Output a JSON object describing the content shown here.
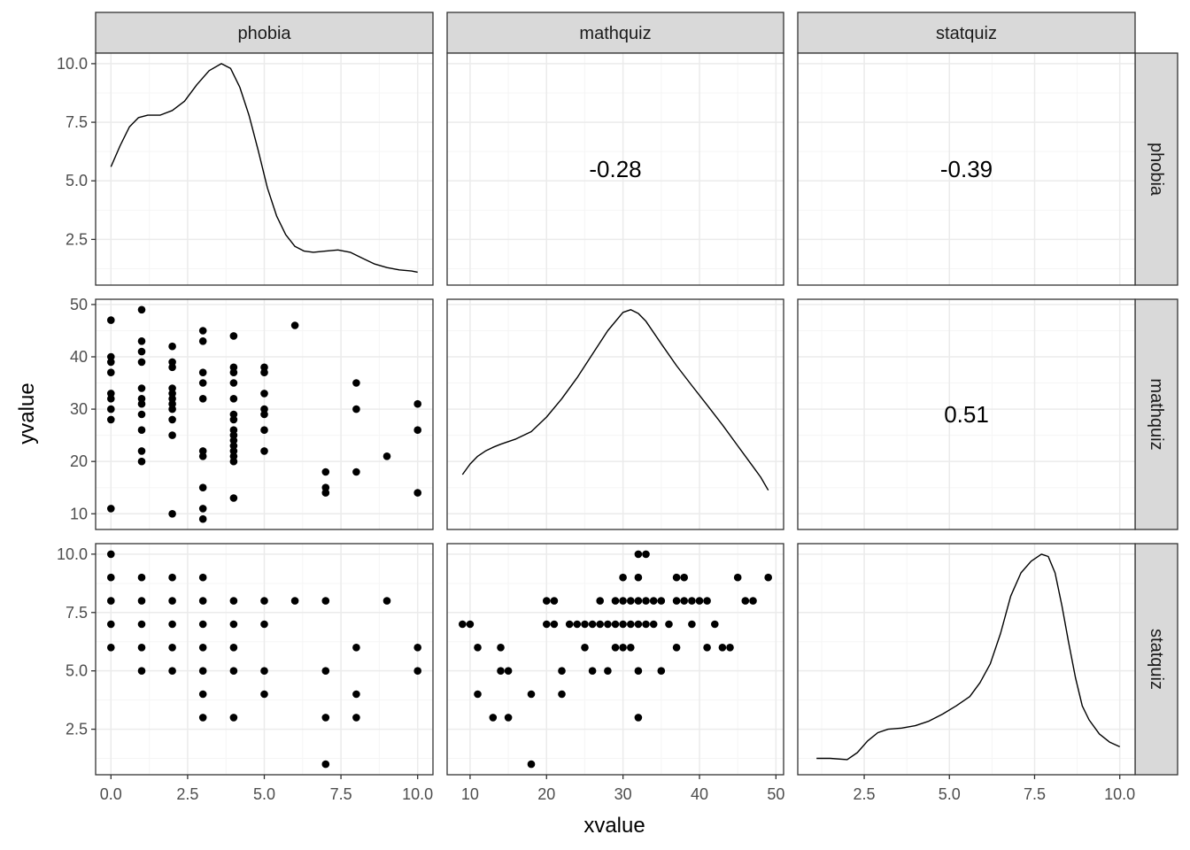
{
  "chart_data": {
    "type": "scatter",
    "kind": "pairs-matrix",
    "variables": [
      "phobia",
      "mathquiz",
      "statquiz"
    ],
    "xlabel": "xvalue",
    "ylabel": "yvalue",
    "grid": true,
    "colors": {
      "point": "#000000",
      "line": "#000000",
      "strip_fill": "#d9d9d9",
      "panel_border": "#333333",
      "grid_major": "#ebebeb",
      "grid_minor": "#f5f5f5",
      "tick_text": "#4d4d4d"
    },
    "columns": [
      {
        "name": "phobia",
        "xlim": [
          -0.5,
          10.5
        ],
        "ticks": [
          0,
          2.5,
          5,
          7.5,
          10
        ],
        "tick_labels": [
          "0.0",
          "2.5",
          "5.0",
          "7.5",
          "10.0"
        ]
      },
      {
        "name": "mathquiz",
        "xlim": [
          7,
          51
        ],
        "ticks": [
          10,
          20,
          30,
          40,
          50
        ],
        "tick_labels": [
          "10",
          "20",
          "30",
          "40",
          "50"
        ]
      },
      {
        "name": "statquiz",
        "xlim": [
          0.55,
          10.45
        ],
        "ticks": [
          2.5,
          5,
          7.5,
          10
        ],
        "tick_labels": [
          "2.5",
          "5.0",
          "7.5",
          "10.0"
        ]
      }
    ],
    "rows": [
      {
        "name": "phobia",
        "ylim": [
          0.55,
          10.45
        ],
        "ticks": [
          2.5,
          5,
          7.5,
          10
        ],
        "tick_labels": [
          "2.5",
          "5.0",
          "7.5",
          "10.0"
        ]
      },
      {
        "name": "mathquiz",
        "ylim": [
          7,
          51
        ],
        "ticks": [
          10,
          20,
          30,
          40,
          50
        ],
        "tick_labels": [
          "10",
          "20",
          "30",
          "40",
          "50"
        ]
      },
      {
        "name": "statquiz",
        "ylim": [
          0.55,
          10.45
        ],
        "ticks": [
          2.5,
          5,
          7.5,
          10
        ],
        "tick_labels": [
          "2.5",
          "5.0",
          "7.5",
          "10.0"
        ]
      }
    ],
    "correlations": [
      {
        "row": 0,
        "col": 1,
        "label": "-0.28",
        "value": -0.28
      },
      {
        "row": 0,
        "col": 2,
        "label": "-0.39",
        "value": -0.39
      },
      {
        "row": 1,
        "col": 2,
        "label": "0.51",
        "value": 0.51
      }
    ],
    "densities": [
      {
        "row": 0,
        "col": 0,
        "points": [
          [
            0,
            5.6
          ],
          [
            0.3,
            6.5
          ],
          [
            0.6,
            7.3
          ],
          [
            0.9,
            7.7
          ],
          [
            1.2,
            7.8
          ],
          [
            1.6,
            7.8
          ],
          [
            2.0,
            8.0
          ],
          [
            2.4,
            8.4
          ],
          [
            2.8,
            9.1
          ],
          [
            3.2,
            9.7
          ],
          [
            3.6,
            10.0
          ],
          [
            3.9,
            9.8
          ],
          [
            4.2,
            9.0
          ],
          [
            4.5,
            7.8
          ],
          [
            4.8,
            6.3
          ],
          [
            5.1,
            4.7
          ],
          [
            5.4,
            3.5
          ],
          [
            5.7,
            2.7
          ],
          [
            6.0,
            2.2
          ],
          [
            6.3,
            2.0
          ],
          [
            6.6,
            1.95
          ],
          [
            7.0,
            2.0
          ],
          [
            7.4,
            2.05
          ],
          [
            7.8,
            1.95
          ],
          [
            8.2,
            1.7
          ],
          [
            8.6,
            1.45
          ],
          [
            9.0,
            1.3
          ],
          [
            9.4,
            1.2
          ],
          [
            9.8,
            1.15
          ],
          [
            10,
            1.1
          ]
        ]
      },
      {
        "row": 1,
        "col": 1,
        "points": [
          [
            9,
            17.5
          ],
          [
            10,
            19.5
          ],
          [
            11,
            21
          ],
          [
            12,
            22
          ],
          [
            13,
            22.7
          ],
          [
            14,
            23.3
          ],
          [
            16,
            24.3
          ],
          [
            18,
            25.7
          ],
          [
            20,
            28.5
          ],
          [
            22,
            32
          ],
          [
            24,
            36
          ],
          [
            26,
            40.5
          ],
          [
            28,
            45
          ],
          [
            30,
            48.5
          ],
          [
            31,
            49
          ],
          [
            32,
            48.3
          ],
          [
            33,
            46.8
          ],
          [
            35,
            42.5
          ],
          [
            37,
            38.3
          ],
          [
            39,
            34.5
          ],
          [
            41,
            30.8
          ],
          [
            43,
            27
          ],
          [
            45,
            23
          ],
          [
            47,
            19
          ],
          [
            48,
            17
          ],
          [
            49,
            14.5
          ]
        ]
      },
      {
        "row": 2,
        "col": 2,
        "points": [
          [
            1.1,
            1.25
          ],
          [
            1.5,
            1.25
          ],
          [
            2.0,
            1.2
          ],
          [
            2.3,
            1.5
          ],
          [
            2.6,
            2.0
          ],
          [
            2.9,
            2.35
          ],
          [
            3.2,
            2.5
          ],
          [
            3.6,
            2.55
          ],
          [
            4.0,
            2.65
          ],
          [
            4.4,
            2.85
          ],
          [
            4.8,
            3.15
          ],
          [
            5.2,
            3.5
          ],
          [
            5.6,
            3.9
          ],
          [
            5.9,
            4.5
          ],
          [
            6.2,
            5.3
          ],
          [
            6.5,
            6.6
          ],
          [
            6.8,
            8.2
          ],
          [
            7.1,
            9.2
          ],
          [
            7.4,
            9.7
          ],
          [
            7.7,
            10.0
          ],
          [
            7.9,
            9.9
          ],
          [
            8.1,
            9.2
          ],
          [
            8.3,
            7.8
          ],
          [
            8.5,
            6.2
          ],
          [
            8.7,
            4.7
          ],
          [
            8.9,
            3.5
          ],
          [
            9.1,
            2.9
          ],
          [
            9.4,
            2.3
          ],
          [
            9.7,
            1.95
          ],
          [
            10.0,
            1.75
          ]
        ]
      }
    ],
    "scatter_panels": [
      {
        "row": 1,
        "col": 0,
        "points": [
          [
            0,
            47
          ],
          [
            0,
            40
          ],
          [
            0,
            39
          ],
          [
            0,
            37
          ],
          [
            0,
            33
          ],
          [
            0,
            32
          ],
          [
            0,
            30
          ],
          [
            0,
            28
          ],
          [
            0,
            11
          ],
          [
            1,
            49
          ],
          [
            1,
            43
          ],
          [
            1,
            41
          ],
          [
            1,
            39
          ],
          [
            1,
            34
          ],
          [
            1,
            32
          ],
          [
            1,
            31
          ],
          [
            1,
            29
          ],
          [
            1,
            26
          ],
          [
            1,
            22
          ],
          [
            1,
            20
          ],
          [
            2,
            42
          ],
          [
            2,
            39
          ],
          [
            2,
            38
          ],
          [
            2,
            34
          ],
          [
            2,
            33
          ],
          [
            2,
            32
          ],
          [
            2,
            31
          ],
          [
            2,
            30
          ],
          [
            2,
            28
          ],
          [
            2,
            25
          ],
          [
            2,
            10
          ],
          [
            3,
            45
          ],
          [
            3,
            43
          ],
          [
            3,
            37
          ],
          [
            3,
            35
          ],
          [
            3,
            32
          ],
          [
            3,
            22
          ],
          [
            3,
            21
          ],
          [
            3,
            15
          ],
          [
            3,
            11
          ],
          [
            3,
            9
          ],
          [
            4,
            44
          ],
          [
            4,
            38
          ],
          [
            4,
            37
          ],
          [
            4,
            35
          ],
          [
            4,
            32
          ],
          [
            4,
            29
          ],
          [
            4,
            28
          ],
          [
            4,
            26
          ],
          [
            4,
            25
          ],
          [
            4,
            24
          ],
          [
            4,
            23
          ],
          [
            4,
            22
          ],
          [
            4,
            21
          ],
          [
            4,
            20
          ],
          [
            4,
            13
          ],
          [
            5,
            38
          ],
          [
            5,
            37
          ],
          [
            5,
            33
          ],
          [
            5,
            30
          ],
          [
            5,
            29
          ],
          [
            5,
            26
          ],
          [
            5,
            22
          ],
          [
            6,
            46
          ],
          [
            7,
            18
          ],
          [
            7,
            15
          ],
          [
            7,
            14
          ],
          [
            8,
            35
          ],
          [
            8,
            30
          ],
          [
            8,
            18
          ],
          [
            9,
            21
          ],
          [
            10,
            31
          ],
          [
            10,
            26
          ],
          [
            10,
            14
          ]
        ]
      },
      {
        "row": 2,
        "col": 0,
        "points": [
          [
            0,
            10
          ],
          [
            0,
            9
          ],
          [
            0,
            8
          ],
          [
            0,
            7
          ],
          [
            0,
            6
          ],
          [
            1,
            9
          ],
          [
            1,
            8
          ],
          [
            1,
            7
          ],
          [
            1,
            6
          ],
          [
            1,
            5
          ],
          [
            2,
            9
          ],
          [
            2,
            8
          ],
          [
            2,
            7
          ],
          [
            2,
            6
          ],
          [
            2,
            5
          ],
          [
            3,
            9
          ],
          [
            3,
            8
          ],
          [
            3,
            7
          ],
          [
            3,
            6
          ],
          [
            3,
            5
          ],
          [
            3,
            4
          ],
          [
            3,
            3
          ],
          [
            4,
            8
          ],
          [
            4,
            7
          ],
          [
            4,
            6
          ],
          [
            4,
            5
          ],
          [
            4,
            3
          ],
          [
            5,
            8
          ],
          [
            5,
            7
          ],
          [
            5,
            5
          ],
          [
            5,
            4
          ],
          [
            6,
            8
          ],
          [
            7,
            8
          ],
          [
            7,
            5
          ],
          [
            7,
            3
          ],
          [
            7,
            1
          ],
          [
            8,
            6
          ],
          [
            8,
            4
          ],
          [
            8,
            3
          ],
          [
            9,
            8
          ],
          [
            10,
            6
          ],
          [
            10,
            5
          ]
        ]
      },
      {
        "row": 2,
        "col": 1,
        "points": [
          [
            9,
            7
          ],
          [
            10,
            7
          ],
          [
            11,
            6
          ],
          [
            11,
            4
          ],
          [
            13,
            3
          ],
          [
            14,
            6
          ],
          [
            14,
            5
          ],
          [
            15,
            5
          ],
          [
            15,
            3
          ],
          [
            18,
            4
          ],
          [
            18,
            1
          ],
          [
            20,
            8
          ],
          [
            20,
            7
          ],
          [
            21,
            8
          ],
          [
            21,
            7
          ],
          [
            22,
            5
          ],
          [
            22,
            4
          ],
          [
            23,
            7
          ],
          [
            24,
            7
          ],
          [
            25,
            7
          ],
          [
            25,
            6
          ],
          [
            26,
            7
          ],
          [
            26,
            5
          ],
          [
            27,
            8
          ],
          [
            27,
            7
          ],
          [
            28,
            7
          ],
          [
            28,
            5
          ],
          [
            29,
            8
          ],
          [
            29,
            7
          ],
          [
            29,
            6
          ],
          [
            30,
            9
          ],
          [
            30,
            8
          ],
          [
            30,
            7
          ],
          [
            30,
            6
          ],
          [
            31,
            8
          ],
          [
            31,
            7
          ],
          [
            31,
            6
          ],
          [
            32,
            10
          ],
          [
            32,
            9
          ],
          [
            32,
            8
          ],
          [
            32,
            7
          ],
          [
            32,
            5
          ],
          [
            32,
            3
          ],
          [
            33,
            10
          ],
          [
            33,
            8
          ],
          [
            33,
            7
          ],
          [
            34,
            8
          ],
          [
            34,
            7
          ],
          [
            35,
            8
          ],
          [
            35,
            5
          ],
          [
            36,
            7
          ],
          [
            37,
            9
          ],
          [
            37,
            8
          ],
          [
            37,
            6
          ],
          [
            38,
            9
          ],
          [
            38,
            8
          ],
          [
            39,
            8
          ],
          [
            39,
            7
          ],
          [
            40,
            8
          ],
          [
            41,
            8
          ],
          [
            41,
            6
          ],
          [
            42,
            7
          ],
          [
            43,
            6
          ],
          [
            44,
            6
          ],
          [
            45,
            9
          ],
          [
            46,
            8
          ],
          [
            47,
            8
          ],
          [
            49,
            9
          ]
        ]
      }
    ]
  }
}
